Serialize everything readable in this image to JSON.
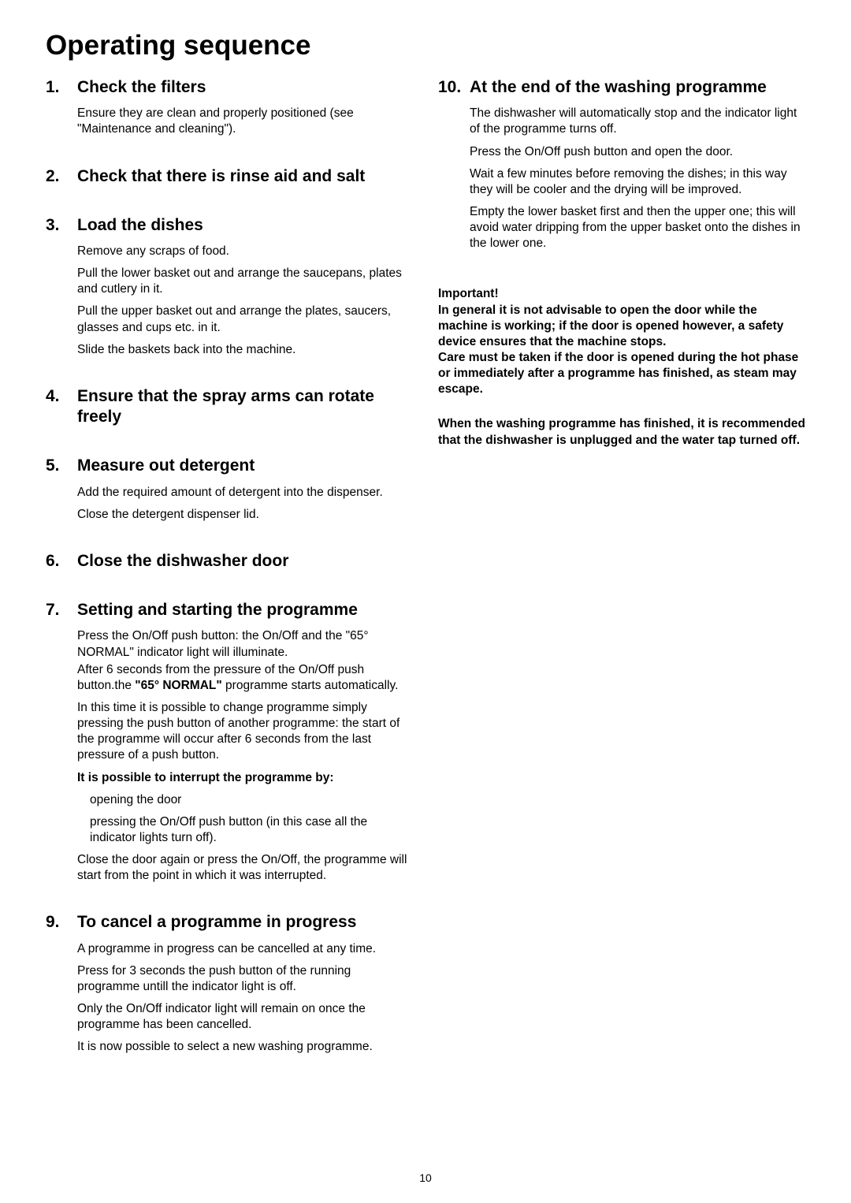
{
  "page": {
    "title": "Operating sequence",
    "number": "10"
  },
  "left": {
    "sections": [
      {
        "num": "1.",
        "title": "Check the filters",
        "paras": [
          {
            "text": "Ensure they are clean and properly positioned (see \"Maintenance and cleaning\")."
          }
        ]
      },
      {
        "num": "2.",
        "title": "Check that there is rinse aid and salt",
        "paras": []
      },
      {
        "num": "3.",
        "title": "Load the dishes",
        "paras": [
          {
            "text": "Remove any scraps of food."
          },
          {
            "text": "Pull the lower basket out and arrange the saucepans, plates and cutlery in it."
          },
          {
            "text": "Pull the upper basket out and arrange the plates, saucers, glasses and cups etc. in it."
          },
          {
            "text": "Slide the baskets back into the machine."
          }
        ]
      },
      {
        "num": "4.",
        "title": "Ensure that the spray arms can rotate freely",
        "paras": []
      },
      {
        "num": "5.",
        "title": "Measure out detergent",
        "paras": [
          {
            "text": "Add the required amount of detergent into the dispenser."
          },
          {
            "text": "Close the detergent dispenser lid."
          }
        ]
      },
      {
        "num": "6.",
        "title": "Close the dishwasher door",
        "paras": []
      }
    ],
    "section7": {
      "num": "7.",
      "title": "Setting and starting the programme",
      "p1a": "Press the On/Off push button: the On/Off and the \"65° NORMAL\" indicator light will illuminate.",
      "p1b_pre": "After 6 seconds from the pressure of the On/Off push button.the ",
      "p1b_bold": "\"65° NORMAL\"",
      "p1b_post": " programme starts automatically.",
      "p2": "In this time it is possible to change programme simply pressing the push button of another programme: the start of the programme will occur after 6 seconds from the last pressure of a push button.",
      "interrupt_label": "It is possible to interrupt the programme by:",
      "interrupt_items": [
        "opening the door",
        "pressing the On/Off push button (in this case all the indicator lights turn off)."
      ],
      "p3": "Close the door again or press the On/Off, the programme will start from the point in which it was interrupted."
    },
    "section9": {
      "num": "9.",
      "title": "To cancel a programme in progress",
      "paras": [
        {
          "text": "A programme in progress can be cancelled at any time."
        },
        {
          "text": "Press  for 3 seconds the push button of the running programme untill the indicator light is off."
        },
        {
          "text": "Only the On/Off indicator light will remain on once the programme has been cancelled."
        },
        {
          "text": "It is now possible to select a new washing programme."
        }
      ]
    }
  },
  "right": {
    "section10": {
      "num": "10.",
      "title": "At the end of the washing programme",
      "paras": [
        {
          "text": "The dishwasher will automatically stop and the indicator light of the programme turns off."
        },
        {
          "text": "Press the On/Off push button and open the door."
        },
        {
          "text": "Wait a few minutes before removing the dishes; in this way they will be cooler and the drying will be improved."
        },
        {
          "text": "Empty the lower basket first and then the upper one; this will avoid water dripping from the upper basket onto the dishes in the lower one."
        }
      ]
    },
    "important": {
      "label": "Important!",
      "text": "In general it is not advisable to open the door while the machine is working; if the door is opened however, a safety device ensures that the machine stops.\nCare must be taken if the door is opened during the hot phase or immediately after a programme has finished, as steam may escape."
    },
    "recommend": "When the washing programme has finished, it is recommended that the dishwasher is unplugged and the water tap turned off."
  }
}
